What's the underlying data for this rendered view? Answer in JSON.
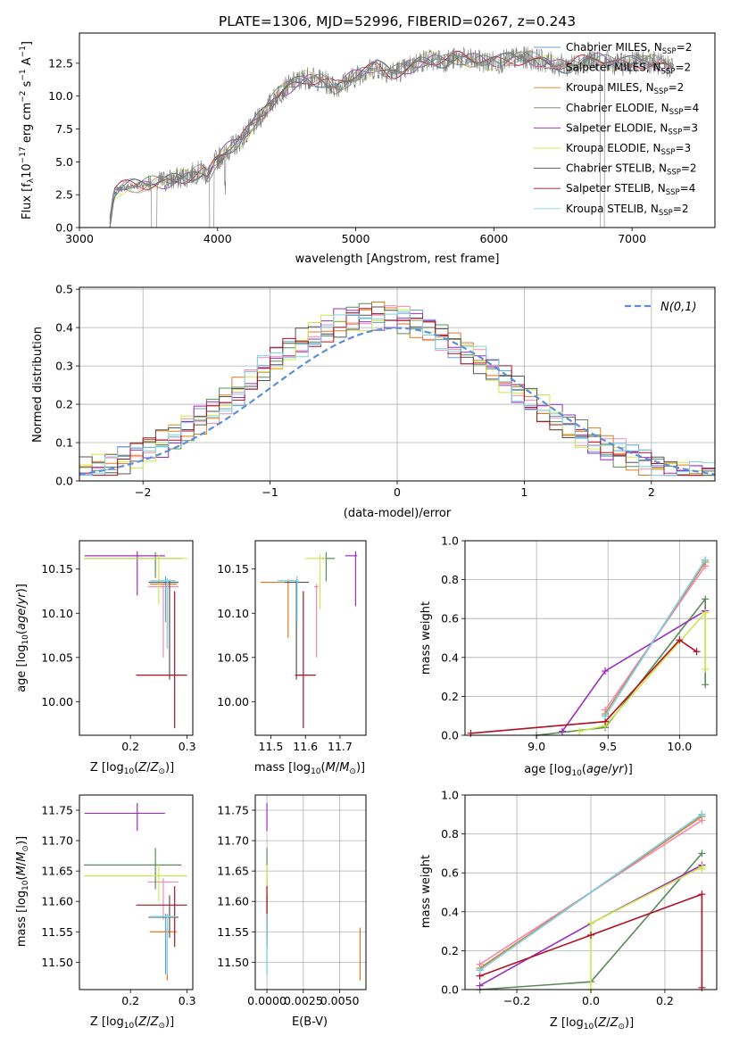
{
  "title": "PLATE=1306, MJD=52996, FIBERID=0267, z=0.243",
  "colors": {
    "Chabrier MILES": "#6a9fd0",
    "Salpeter MILES": "#f08ab0",
    "Kroupa MILES": "#e07a1f",
    "Chabrier ELODIE": "#5b8a5b",
    "Salpeter ELODIE": "#9b2fbd",
    "Kroupa ELODIE": "#cce84a",
    "Chabrier STELIB": "#555555",
    "Salpeter STELIB": "#b01020",
    "Kroupa STELIB": "#7fd4e8"
  },
  "legend": [
    {
      "name": "Chabrier MILES",
      "prefix": "Chabrier MILES, N",
      "n": "2"
    },
    {
      "name": "Salpeter MILES",
      "prefix": "Salpeter MILES, N",
      "n": "2"
    },
    {
      "name": "Kroupa MILES",
      "prefix": "Kroupa MILES, N",
      "n": "2"
    },
    {
      "name": "Chabrier ELODIE",
      "prefix": "Chabrier ELODIE, N",
      "n": "4"
    },
    {
      "name": "Salpeter ELODIE",
      "prefix": "Salpeter ELODIE, N",
      "n": "3"
    },
    {
      "name": "Kroupa ELODIE",
      "prefix": "Kroupa ELODIE, N",
      "n": "3"
    },
    {
      "name": "Chabrier STELIB",
      "prefix": "Chabrier STELIB, N",
      "n": "2"
    },
    {
      "name": "Salpeter STELIB",
      "prefix": "Salpeter STELIB, N",
      "n": "4"
    },
    {
      "name": "Kroupa STELIB",
      "prefix": "Kroupa STELIB, N",
      "n": "2"
    }
  ],
  "chart_data": [
    {
      "id": "spectrum",
      "type": "line",
      "title": "PLATE=1306, MJD=52996, FIBERID=0267, z=0.243",
      "xlabel": "wavelength [Angstrom, rest frame]",
      "ylabel": "Flux [f_λ 10^-17 erg cm^-2 s^-1 A^-1]",
      "xlim": [
        3000,
        7600
      ],
      "ylim": [
        0,
        14.8
      ],
      "xticks": [
        3000,
        4000,
        5000,
        6000,
        7000
      ],
      "yticks": [
        0.0,
        2.5,
        5.0,
        7.5,
        10.0,
        12.5
      ],
      "grid": false,
      "legend_position": "upper right",
      "observed_x": [
        3220,
        3250,
        3300,
        3400,
        3500,
        3600,
        3700,
        3800,
        3850,
        3900,
        3930,
        3980,
        4050,
        4150,
        4250,
        4350,
        4450,
        4550,
        4650,
        4750,
        4850,
        4950,
        5050,
        5150,
        5250,
        5350,
        5450,
        5550,
        5650,
        5750,
        5850,
        5950,
        6050,
        6150,
        6250,
        6350,
        6450,
        6550,
        6650,
        6750,
        6850,
        6950,
        7050,
        7150,
        7250
      ],
      "observed_y": [
        0.3,
        2.7,
        3.0,
        3.2,
        3.3,
        3.5,
        3.7,
        4.0,
        4.2,
        4.3,
        3.9,
        5.0,
        5.7,
        6.5,
        7.6,
        9.0,
        10.3,
        11.0,
        11.4,
        11.2,
        10.7,
        11.2,
        11.8,
        12.2,
        11.8,
        12.0,
        12.6,
        12.8,
        12.7,
        12.9,
        12.7,
        12.6,
        12.6,
        12.9,
        12.9,
        12.7,
        12.4,
        12.3,
        12.6,
        12.8,
        12.5,
        12.4,
        12.7,
        12.6,
        12.3
      ]
    },
    {
      "id": "residuals",
      "type": "histogram",
      "xlabel": "(data-model)/error",
      "ylabel": "Normed distribution",
      "xlim": [
        -2.5,
        2.5
      ],
      "ylim": [
        0,
        0.505
      ],
      "xticks": [
        -2,
        -1,
        0,
        1,
        2
      ],
      "yticks": [
        0.0,
        0.1,
        0.2,
        0.3,
        0.4,
        0.5
      ],
      "grid": true,
      "legend_position": "upper right",
      "gaussian_label": "N(0,1)",
      "bin_width": 0.1
    },
    {
      "id": "age_vs_Z",
      "type": "errorbar",
      "xlabel": "Z [log10(Z/Z⊙)]",
      "ylabel": "age [log10(age/yr)]",
      "xlim": [
        0.11,
        0.31
      ],
      "ylim": [
        9.962,
        10.182
      ],
      "xticks": [
        0.2,
        0.3
      ],
      "yticks": [
        10.0,
        10.05,
        10.1,
        10.15
      ],
      "points": [
        {
          "name": "Chabrier MILES",
          "x": 0.262,
          "y": 10.137,
          "xerr": [
            0.236,
            0.279
          ],
          "yerr": [
            10.09,
            10.142
          ]
        },
        {
          "name": "Salpeter MILES",
          "x": 0.258,
          "y": 10.13,
          "xerr": [
            0.231,
            0.285
          ],
          "yerr": [
            10.05,
            10.133
          ]
        },
        {
          "name": "Kroupa MILES",
          "x": 0.265,
          "y": 10.133,
          "xerr": [
            0.234,
            0.282
          ],
          "yerr": [
            10.06,
            10.138
          ]
        },
        {
          "name": "Chabrier ELODIE",
          "x": 0.244,
          "y": 10.162,
          "xerr": [
            0.118,
            0.29
          ],
          "yerr": [
            10.14,
            10.169
          ]
        },
        {
          "name": "Salpeter ELODIE",
          "x": 0.212,
          "y": 10.165,
          "xerr": [
            0.119,
            0.261
          ],
          "yerr": [
            10.12,
            10.17
          ]
        },
        {
          "name": "Kroupa ELODIE",
          "x": 0.25,
          "y": 10.162,
          "xerr": [
            0.118,
            0.3
          ],
          "yerr": [
            10.11,
            10.167
          ]
        },
        {
          "name": "Chabrier STELIB",
          "x": 0.269,
          "y": 10.135,
          "xerr": [
            0.232,
            0.285
          ],
          "yerr": [
            10.025,
            10.138
          ]
        },
        {
          "name": "Salpeter STELIB",
          "x": 0.278,
          "y": 10.03,
          "xerr": [
            0.21,
            0.3
          ],
          "yerr": [
            9.97,
            10.125
          ]
        },
        {
          "name": "Kroupa STELIB",
          "x": 0.265,
          "y": 10.137,
          "xerr": [
            0.235,
            0.28
          ],
          "yerr": [
            10.06,
            10.14
          ]
        }
      ]
    },
    {
      "id": "age_vs_mass",
      "type": "errorbar",
      "xlabel": "mass [log10(M/M⊙)]",
      "ylabel": "",
      "xlim": [
        11.455,
        11.775
      ],
      "ylim": [
        9.962,
        10.182
      ],
      "xticks": [
        11.5,
        11.6,
        11.7
      ],
      "yticks": [
        10.0,
        10.05,
        10.1,
        10.15
      ],
      "points": [
        {
          "name": "Chabrier MILES",
          "x": 11.576,
          "y": 10.137,
          "xerr": [
            11.52,
            11.58
          ],
          "yerr": [
            10.09,
            10.142
          ]
        },
        {
          "name": "Salpeter MILES",
          "x": 11.632,
          "y": 10.13,
          "xerr": [
            11.625,
            11.638
          ],
          "yerr": [
            10.05,
            10.133
          ]
        },
        {
          "name": "Kroupa MILES",
          "x": 11.55,
          "y": 10.135,
          "xerr": [
            11.47,
            11.56
          ],
          "yerr": [
            10.072,
            10.138
          ]
        },
        {
          "name": "Chabrier ELODIE",
          "x": 11.66,
          "y": 10.162,
          "xerr": [
            11.645,
            11.685
          ],
          "yerr": [
            10.136,
            10.169
          ]
        },
        {
          "name": "Salpeter ELODIE",
          "x": 11.745,
          "y": 10.165,
          "xerr": [
            11.715,
            11.75
          ],
          "yerr": [
            10.108,
            10.17
          ]
        },
        {
          "name": "Kroupa ELODIE",
          "x": 11.642,
          "y": 10.162,
          "xerr": [
            11.6,
            11.66
          ],
          "yerr": [
            10.104,
            10.167
          ]
        },
        {
          "name": "Chabrier STELIB",
          "x": 11.574,
          "y": 10.135,
          "xerr": [
            11.54,
            11.61
          ],
          "yerr": [
            10.025,
            10.138
          ]
        },
        {
          "name": "Salpeter STELIB",
          "x": 11.594,
          "y": 10.03,
          "xerr": [
            11.57,
            11.63
          ],
          "yerr": [
            9.97,
            10.125
          ]
        },
        {
          "name": "Kroupa STELIB",
          "x": 11.576,
          "y": 10.137,
          "xerr": [
            11.52,
            11.58
          ],
          "yerr": [
            10.09,
            10.142
          ]
        }
      ]
    },
    {
      "id": "weight_vs_age",
      "type": "line",
      "xlabel": "age [log10(age/yr)]",
      "ylabel": "mass weight",
      "xlim": [
        8.5,
        10.26
      ],
      "ylim": [
        0,
        1.0
      ],
      "xticks": [
        9.0,
        9.5,
        10.0
      ],
      "yticks": [
        0.0,
        0.2,
        0.4,
        0.6,
        0.8,
        1.0
      ],
      "grid": true,
      "series": [
        {
          "name": "Chabrier MILES",
          "x": [
            9.48,
            10.18
          ],
          "y": [
            0.1,
            0.9
          ]
        },
        {
          "name": "Salpeter MILES",
          "x": [
            9.48,
            10.18
          ],
          "y": [
            0.13,
            0.87
          ]
        },
        {
          "name": "Kroupa MILES",
          "x": [
            9.48,
            10.18
          ],
          "y": [
            0.11,
            0.89
          ]
        },
        {
          "name": "Chabrier ELODIE",
          "x": [
            9.0,
            9.48,
            10.18,
            10.18
          ],
          "y": [
            0.0,
            0.04,
            0.7,
            0.26
          ]
        },
        {
          "name": "Salpeter ELODIE",
          "x": [
            9.18,
            9.48,
            10.18
          ],
          "y": [
            0.02,
            0.33,
            0.64
          ]
        },
        {
          "name": "Kroupa ELODIE",
          "x": [
            9.3,
            9.48,
            10.18,
            10.18
          ],
          "y": [
            0.02,
            0.05,
            0.63,
            0.34
          ]
        },
        {
          "name": "Chabrier STELIB",
          "x": [
            9.48,
            10.18
          ],
          "y": [
            0.1,
            0.9
          ]
        },
        {
          "name": "Salpeter STELIB",
          "x": [
            8.54,
            9.48,
            10.0,
            10.12
          ],
          "y": [
            0.01,
            0.07,
            0.49,
            0.43
          ]
        },
        {
          "name": "Kroupa STELIB",
          "x": [
            9.48,
            10.18
          ],
          "y": [
            0.1,
            0.9
          ]
        }
      ]
    },
    {
      "id": "mass_vs_Z",
      "type": "errorbar",
      "xlabel": "Z [log10(Z/Z⊙)]",
      "ylabel": "mass [log10(M/M⊙)]",
      "xlim": [
        0.11,
        0.31
      ],
      "ylim": [
        11.455,
        11.775
      ],
      "xticks": [
        0.2,
        0.3
      ],
      "yticks": [
        11.5,
        11.55,
        11.6,
        11.65,
        11.7,
        11.75
      ],
      "points": [
        {
          "name": "Chabrier MILES",
          "x": 0.262,
          "y": 11.575,
          "xerr": [
            0.236,
            0.279
          ],
          "yerr": [
            11.48,
            11.58
          ]
        },
        {
          "name": "Salpeter MILES",
          "x": 0.258,
          "y": 11.632,
          "xerr": [
            0.231,
            0.285
          ],
          "yerr": [
            11.57,
            11.638
          ]
        },
        {
          "name": "Kroupa MILES",
          "x": 0.265,
          "y": 11.55,
          "xerr": [
            0.234,
            0.282
          ],
          "yerr": [
            11.47,
            11.556
          ]
        },
        {
          "name": "Chabrier ELODIE",
          "x": 0.244,
          "y": 11.66,
          "xerr": [
            0.118,
            0.29
          ],
          "yerr": [
            11.62,
            11.688
          ]
        },
        {
          "name": "Salpeter ELODIE",
          "x": 0.212,
          "y": 11.745,
          "xerr": [
            0.119,
            0.261
          ],
          "yerr": [
            11.716,
            11.762
          ]
        },
        {
          "name": "Kroupa ELODIE",
          "x": 0.25,
          "y": 11.642,
          "xerr": [
            0.118,
            0.3
          ],
          "yerr": [
            11.6,
            11.66
          ]
        },
        {
          "name": "Chabrier STELIB",
          "x": 0.269,
          "y": 11.574,
          "xerr": [
            0.232,
            0.285
          ],
          "yerr": [
            11.54,
            11.61
          ]
        },
        {
          "name": "Salpeter STELIB",
          "x": 0.278,
          "y": 11.594,
          "xerr": [
            0.21,
            0.3
          ],
          "yerr": [
            11.525,
            11.625
          ]
        },
        {
          "name": "Kroupa STELIB",
          "x": 0.265,
          "y": 11.575,
          "xerr": [
            0.235,
            0.28
          ],
          "yerr": [
            11.48,
            11.58
          ]
        }
      ]
    },
    {
      "id": "mass_vs_EBV",
      "type": "errorbar",
      "xlabel": "E(B-V)",
      "ylabel": "",
      "xlim": [
        -0.0008,
        0.0068
      ],
      "ylim": [
        11.455,
        11.775
      ],
      "xticks": [
        0.0,
        0.0025,
        0.005
      ],
      "yticks": [
        11.5,
        11.55,
        11.6,
        11.65,
        11.7,
        11.75
      ],
      "grid": true,
      "points": [
        {
          "name": "Chabrier MILES",
          "x": 0.0,
          "y": 11.575,
          "yerr": [
            11.48,
            11.58
          ]
        },
        {
          "name": "Salpeter MILES",
          "x": 0.0,
          "y": 11.632,
          "yerr": [
            11.57,
            11.638
          ]
        },
        {
          "name": "Kroupa MILES",
          "x": 0.0064,
          "y": 11.52,
          "yerr": [
            11.47,
            11.557
          ]
        },
        {
          "name": "Chabrier ELODIE",
          "x": 0.0,
          "y": 11.66,
          "yerr": [
            11.62,
            11.688
          ]
        },
        {
          "name": "Salpeter ELODIE",
          "x": 0.0,
          "y": 11.745,
          "yerr": [
            11.716,
            11.762
          ]
        },
        {
          "name": "Kroupa ELODIE",
          "x": 0.0,
          "y": 11.642,
          "yerr": [
            11.6,
            11.66
          ]
        },
        {
          "name": "Chabrier STELIB",
          "x": 0.0,
          "y": 11.574,
          "yerr": [
            11.54,
            11.61
          ]
        },
        {
          "name": "Salpeter STELIB",
          "x": 0.0,
          "y": 11.594,
          "yerr": [
            11.525,
            11.625
          ]
        },
        {
          "name": "Kroupa STELIB",
          "x": 0.0,
          "y": 11.575,
          "yerr": [
            11.48,
            11.58
          ]
        }
      ]
    },
    {
      "id": "weight_vs_Z",
      "type": "line",
      "xlabel": "Z [log10(Z/Z⊙)]",
      "ylabel": "mass weight",
      "xlim": [
        -0.34,
        0.34
      ],
      "ylim": [
        0,
        1.0
      ],
      "xticks": [
        -0.2,
        0.0,
        0.2
      ],
      "yticks": [
        0.0,
        0.2,
        0.4,
        0.6,
        0.8,
        1.0
      ],
      "grid": true,
      "series": [
        {
          "name": "Chabrier MILES",
          "x": [
            -0.3,
            0.3
          ],
          "y": [
            0.1,
            0.9
          ]
        },
        {
          "name": "Salpeter MILES",
          "x": [
            -0.3,
            0.3
          ],
          "y": [
            0.13,
            0.87
          ]
        },
        {
          "name": "Kroupa MILES",
          "x": [
            -0.3,
            0.3
          ],
          "y": [
            0.11,
            0.89
          ]
        },
        {
          "name": "Chabrier ELODIE",
          "x": [
            -0.3,
            0.0,
            0.3
          ],
          "y": [
            0.0,
            0.04,
            0.7
          ]
        },
        {
          "name": "Salpeter ELODIE",
          "x": [
            -0.3,
            0.0,
            0.3
          ],
          "y": [
            0.02,
            0.34,
            0.64
          ]
        },
        {
          "name": "Kroupa ELODIE",
          "x": [
            0.0,
            0.0,
            0.3,
            0.3
          ],
          "y": [
            0.0,
            0.34,
            0.63,
            0.62
          ]
        },
        {
          "name": "Chabrier STELIB",
          "x": [
            -0.3,
            0.3
          ],
          "y": [
            0.1,
            0.9
          ]
        },
        {
          "name": "Salpeter STELIB",
          "x": [
            -0.3,
            0.0,
            0.3,
            0.3
          ],
          "y": [
            0.07,
            0.28,
            0.49,
            0.01
          ]
        },
        {
          "name": "Kroupa STELIB",
          "x": [
            -0.3,
            0.3
          ],
          "y": [
            0.1,
            0.9
          ]
        }
      ]
    }
  ]
}
